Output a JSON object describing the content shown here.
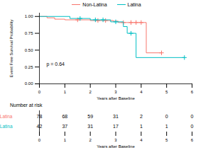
{
  "chart_data": [
    {
      "type": "line",
      "line_style": "step",
      "marker": "plus",
      "legend": "top",
      "grid": false,
      "xlabel": "Years after Baseline",
      "ylabel": "Event Free Survival Probability",
      "xlim": [
        0,
        6
      ],
      "xticks": [
        0,
        1,
        2,
        3,
        4,
        5,
        6
      ],
      "ylim": [
        0,
        1.05
      ],
      "yticks": [
        {
          "value": 0,
          "label": "0.00"
        },
        {
          "value": 0.25,
          "label": "0.25"
        },
        {
          "value": 0.5,
          "label": "0.50"
        },
        {
          "value": 0.75,
          "label": "0.75"
        },
        {
          "value": 1,
          "label": "1.00"
        }
      ],
      "annotations": [
        {
          "text": "p = 0.64"
        }
      ],
      "series": [
        {
          "name": "Non-Latina",
          "color": "#F8766D",
          "x": [
            0,
            0.3,
            0.6,
            1.0,
            2.0,
            2.9,
            3.1,
            4.2,
            4.8
          ],
          "values": [
            1,
            0.98,
            0.96,
            0.95,
            0.94,
            0.93,
            0.91,
            0.46,
            0.46
          ],
          "censored_x": [
            1.5,
            2.3,
            2.6,
            3.3,
            3.6,
            3.8,
            4.0,
            4.8
          ]
        },
        {
          "name": "Latina",
          "color": "#00BFC4",
          "x": [
            0,
            1.2,
            2.0,
            2.8,
            3.3,
            3.45,
            3.8,
            5.7
          ],
          "values": [
            1,
            0.97,
            0.95,
            0.92,
            0.85,
            0.75,
            0.39,
            0.39
          ],
          "censored_x": [
            1.6,
            2.2,
            2.5,
            3.0,
            3.6,
            5.7
          ]
        }
      ]
    },
    {
      "type": "table",
      "title": "Number at risk",
      "xlabel": "Years after Baseline",
      "xlim": [
        0,
        6
      ],
      "xticks": [
        0,
        1,
        2,
        3,
        4,
        5,
        6
      ],
      "x": [
        0,
        1,
        2,
        3,
        4,
        5,
        6
      ],
      "series": [
        {
          "name": "Non-Latina",
          "color": "#F8766D",
          "values": [
            78,
            68,
            59,
            31,
            2,
            0,
            0
          ]
        },
        {
          "name": "Latina",
          "color": "#00BFC4",
          "values": [
            42,
            37,
            31,
            17,
            1,
            1,
            0
          ]
        }
      ]
    }
  ]
}
